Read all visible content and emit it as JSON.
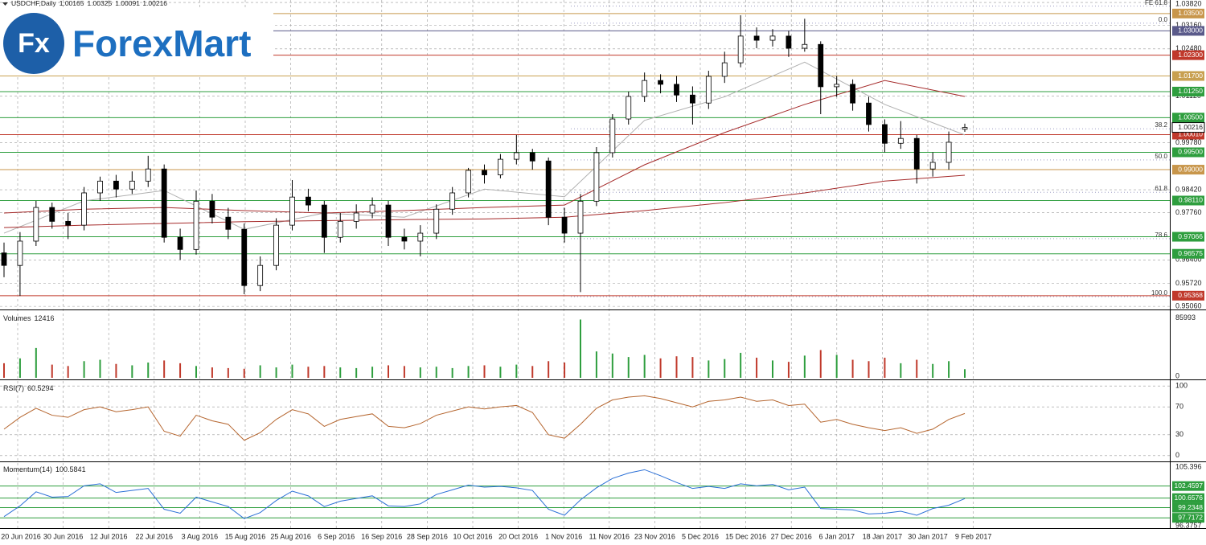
{
  "logo": {
    "mark": "Fx",
    "name": "ForexMart"
  },
  "chart_data": [
    {
      "type": "candlestick",
      "symbol": "USDCHF,Daily",
      "grid": true,
      "categories": [
        "20 Jun 2016",
        "30 Jun 2016",
        "12 Jul 2016",
        "22 Jul 2016",
        "3 Aug 2016",
        "15 Aug 2016",
        "25 Aug 2016",
        "6 Sep 2016",
        "16 Sep 2016",
        "28 Sep 2016",
        "10 Oct 2016",
        "20 Oct 2016",
        "1 Nov 2016",
        "11 Nov 2016",
        "23 Nov 2016",
        "5 Dec 2016",
        "15 Dec 2016",
        "27 Dec 2016",
        "6 Jan 2017",
        "18 Jan 2017",
        "30 Jan 2017",
        "9 Feb 2017"
      ],
      "ylim": [
        0.9497,
        1.0389
      ],
      "yticks": [
        {
          "value": 1.0382,
          "label": "1.03820"
        },
        {
          "value": 1.0316,
          "label": "1.03160"
        },
        {
          "value": 1.0248,
          "label": "1.02480"
        },
        {
          "value": 1.0112,
          "label": "1.01120"
        },
        {
          "value": 0.9978,
          "label": "0.99780"
        },
        {
          "value": 0.9842,
          "label": "0.98420"
        },
        {
          "value": 0.9776,
          "label": "0.97760"
        },
        {
          "value": 0.964,
          "label": "0.96400"
        },
        {
          "value": 0.9572,
          "label": "0.95720"
        },
        {
          "value": 0.9506,
          "label": "0.95060"
        }
      ],
      "levels": [
        {
          "value": 1.035,
          "label": "1.03500",
          "color": "#c8964b"
        },
        {
          "value": 1.03,
          "label": "1.03000",
          "color": "#5a5a8a"
        },
        {
          "value": 1.023,
          "label": "1.02300",
          "color": "#c0392b"
        },
        {
          "value": 1.017,
          "label": "1.01700",
          "color": "#c8a050"
        },
        {
          "value": 1.0125,
          "label": "1.01250",
          "color": "#2e9e3e"
        },
        {
          "value": 1.005,
          "label": "1.00500",
          "color": "#2e9e3e"
        },
        {
          "value": 1.0001,
          "label": "1.00010",
          "color": "#c0392b"
        },
        {
          "value": 0.995,
          "label": "0.99500",
          "color": "#2e9e3e"
        },
        {
          "value": 0.99,
          "label": "0.99000",
          "color": "#c8964b"
        },
        {
          "value": 0.9811,
          "label": "0.98110",
          "color": "#2e9e3e"
        },
        {
          "value": 0.97066,
          "label": "0.97066",
          "color": "#2e9e3e"
        },
        {
          "value": 0.96575,
          "label": "0.96575",
          "color": "#2e9e3e"
        },
        {
          "value": 0.95368,
          "label": "0.95368",
          "color": "#c0392b"
        }
      ],
      "fib": [
        {
          "value": 1.0371,
          "label": "FE 61.8"
        },
        {
          "value": 1.0322,
          "label": "0.0"
        },
        {
          "value": 1.0018,
          "label": "38.2"
        },
        {
          "value": 0.9928,
          "label": "50.0"
        },
        {
          "value": 0.9835,
          "label": "61.8"
        },
        {
          "value": 0.9701,
          "label": "78.6"
        },
        {
          "value": 0.9534,
          "label": "100.0"
        }
      ],
      "ma": [
        {
          "color": "#b0b0b0",
          "values": [
            0.9717,
            0.981,
            0.984,
            0.9728,
            0.9775,
            0.9763,
            0.9844,
            0.9822,
            1.0042,
            1.011,
            1.021,
            1.0088,
            1.0
          ]
        },
        {
          "color": "#a52a2a",
          "values": [
            0.9775,
            0.9786,
            0.9791,
            0.9782,
            0.9775,
            0.9782,
            0.9791,
            0.9798,
            0.9914,
            1.0007,
            1.0088,
            1.0157,
            1.0111
          ]
        },
        {
          "color": "#a52a2a",
          "values": [
            0.9733,
            0.974,
            0.9745,
            0.975,
            0.9753,
            0.9756,
            0.9758,
            0.9763,
            0.9782,
            0.9805,
            0.9833,
            0.9867,
            0.9884
          ]
        }
      ],
      "candles": [
        [
          0.966,
          0.969,
          0.959,
          0.9624
        ],
        [
          0.9624,
          0.972,
          0.9536,
          0.9694
        ],
        [
          0.9694,
          0.981,
          0.968,
          0.9791
        ],
        [
          0.9791,
          0.9805,
          0.973,
          0.9751
        ],
        [
          0.9751,
          0.9775,
          0.97,
          0.974
        ],
        [
          0.974,
          0.985,
          0.9725,
          0.9833
        ],
        [
          0.9833,
          0.988,
          0.981,
          0.9867
        ],
        [
          0.9867,
          0.9885,
          0.982,
          0.9844
        ],
        [
          0.9844,
          0.9895,
          0.983,
          0.9867
        ],
        [
          0.9867,
          0.994,
          0.985,
          0.9902
        ],
        [
          0.9902,
          0.9915,
          0.969,
          0.9705
        ],
        [
          0.9705,
          0.973,
          0.964,
          0.967
        ],
        [
          0.967,
          0.984,
          0.9655,
          0.9809
        ],
        [
          0.9809,
          0.983,
          0.9745,
          0.9763
        ],
        [
          0.9763,
          0.979,
          0.97,
          0.9728
        ],
        [
          0.9728,
          0.9745,
          0.9541,
          0.9566
        ],
        [
          0.9566,
          0.965,
          0.955,
          0.9624
        ],
        [
          0.9624,
          0.976,
          0.961,
          0.974
        ],
        [
          0.974,
          0.987,
          0.9725,
          0.9821
        ],
        [
          0.9821,
          0.9845,
          0.978,
          0.9798
        ],
        [
          0.9798,
          0.981,
          0.966,
          0.9705
        ],
        [
          0.9705,
          0.9775,
          0.969,
          0.9751
        ],
        [
          0.9751,
          0.98,
          0.973,
          0.9775
        ],
        [
          0.9775,
          0.982,
          0.976,
          0.9798
        ],
        [
          0.9798,
          0.981,
          0.968,
          0.9705
        ],
        [
          0.9705,
          0.973,
          0.967,
          0.9694
        ],
        [
          0.9694,
          0.974,
          0.965,
          0.9717
        ],
        [
          0.9717,
          0.98,
          0.97,
          0.9786
        ],
        [
          0.9786,
          0.985,
          0.977,
          0.9833
        ],
        [
          0.9833,
          0.9905,
          0.982,
          0.9898
        ],
        [
          0.9898,
          0.9915,
          0.986,
          0.9885
        ],
        [
          0.9885,
          0.9945,
          0.9875,
          0.993
        ],
        [
          0.993,
          1.0,
          0.9915,
          0.9949
        ],
        [
          0.9949,
          0.996,
          0.99,
          0.9925
        ],
        [
          0.9925,
          0.9935,
          0.974,
          0.9763
        ],
        [
          0.9763,
          0.979,
          0.969,
          0.9717
        ],
        [
          0.9717,
          0.983,
          0.9547,
          0.9809
        ],
        [
          0.9809,
          0.9965,
          0.9795,
          0.9949
        ],
        [
          0.9949,
          1.006,
          0.9935,
          1.0046
        ],
        [
          1.0046,
          1.0125,
          1.003,
          1.0111
        ],
        [
          1.0111,
          1.018,
          1.0095,
          1.0157
        ],
        [
          1.0157,
          1.0175,
          1.012,
          1.0146
        ],
        [
          1.0146,
          1.017,
          1.0095,
          1.0115
        ],
        [
          1.0115,
          1.014,
          1.003,
          1.0092
        ],
        [
          1.0092,
          1.0185,
          1.0075,
          1.0169
        ],
        [
          1.0169,
          1.024,
          1.015,
          1.0208
        ],
        [
          1.0208,
          1.0345,
          1.0195,
          1.0285
        ],
        [
          1.0285,
          1.031,
          1.025,
          1.0273
        ],
        [
          1.0273,
          1.0305,
          1.0255,
          1.0285
        ],
        [
          1.0285,
          1.03,
          1.0225,
          1.025
        ],
        [
          1.025,
          1.0335,
          1.024,
          1.0261
        ],
        [
          1.0261,
          1.027,
          1.006,
          1.0139
        ],
        [
          1.0139,
          1.017,
          1.011,
          1.0146
        ],
        [
          1.0146,
          1.016,
          1.007,
          1.0092
        ],
        [
          1.0092,
          1.011,
          1.001,
          1.003
        ],
        [
          1.003,
          1.0045,
          0.995,
          0.9976
        ],
        [
          0.9976,
          1.004,
          0.996,
          0.999
        ],
        [
          0.999,
          1.0,
          0.986,
          0.9902
        ],
        [
          0.9902,
          0.995,
          0.988,
          0.9921
        ],
        [
          0.9921,
          1.001,
          0.99,
          0.9979
        ],
        [
          1.00165,
          1.00325,
          1.00091,
          1.00216
        ]
      ]
    },
    {
      "type": "bar",
      "label": "Volumes",
      "ylim": [
        0,
        95000
      ],
      "yticks": [
        85993,
        0
      ],
      "values": [
        21000,
        28000,
        43000,
        19000,
        17000,
        24000,
        26000,
        20000,
        18000,
        22000,
        25000,
        21000,
        17000,
        15000,
        14000,
        13000,
        18000,
        15000,
        19000,
        16000,
        17000,
        15000,
        14000,
        16000,
        18000,
        17000,
        15000,
        16000,
        14000,
        17000,
        18000,
        16000,
        19000,
        17000,
        24000,
        22000,
        84000,
        38000,
        35000,
        30000,
        33000,
        28000,
        31000,
        30000,
        25000,
        27000,
        36000,
        29000,
        25000,
        23000,
        32000,
        40000,
        33000,
        26000,
        24000,
        29000,
        21000,
        26000,
        20000,
        24000,
        12416
      ]
    },
    {
      "type": "line",
      "label": "RSI(7)",
      "color": "#b5652e",
      "ylim": [
        -6,
        106
      ],
      "yticks": [
        100,
        70,
        30,
        0
      ],
      "values": [
        38,
        55,
        68,
        58,
        55,
        66,
        70,
        63,
        66,
        70,
        35,
        28,
        58,
        50,
        45,
        22,
        33,
        52,
        66,
        60,
        42,
        52,
        56,
        60,
        42,
        40,
        46,
        58,
        64,
        70,
        67,
        70,
        72,
        62,
        30,
        25,
        45,
        68,
        80,
        84,
        86,
        82,
        76,
        70,
        78,
        80,
        84,
        78,
        80,
        72,
        74,
        48,
        52,
        45,
        40,
        36,
        40,
        32,
        38,
        52,
        60.5294
      ]
    },
    {
      "type": "line",
      "label": "Momentum(14)",
      "color": "#2a6fd6",
      "ylim": [
        96.3,
        105.9
      ],
      "yticks": [
        105.396,
        96.3757
      ],
      "levels": [
        {
          "value": 102.4597,
          "color": "#2e9e3e"
        },
        {
          "value": 100.6576,
          "color": "#2e9e3e"
        },
        {
          "value": 99.2348,
          "color": "#2e9e3e"
        },
        {
          "value": 97.7172,
          "color": "#2e9e3e"
        }
      ],
      "values": [
        97.9,
        99.5,
        101.6,
        100.8,
        100.9,
        102.5,
        102.8,
        101.5,
        101.8,
        102.1,
        99.0,
        98.4,
        100.8,
        100.1,
        99.4,
        97.6,
        98.5,
        100.3,
        101.7,
        101.0,
        99.4,
        100.2,
        100.6,
        101.0,
        99.5,
        99.4,
        99.8,
        101.2,
        101.9,
        102.6,
        102.3,
        102.4,
        102.2,
        101.8,
        99.0,
        98.1,
        100.4,
        102.2,
        103.6,
        104.4,
        104.9,
        104.0,
        103.0,
        102.1,
        102.4,
        102.1,
        102.8,
        102.5,
        102.7,
        101.9,
        102.3,
        99.1,
        99.0,
        98.9,
        98.3,
        98.4,
        98.7,
        98.1,
        99.1,
        99.6,
        100.5841
      ]
    }
  ]
}
